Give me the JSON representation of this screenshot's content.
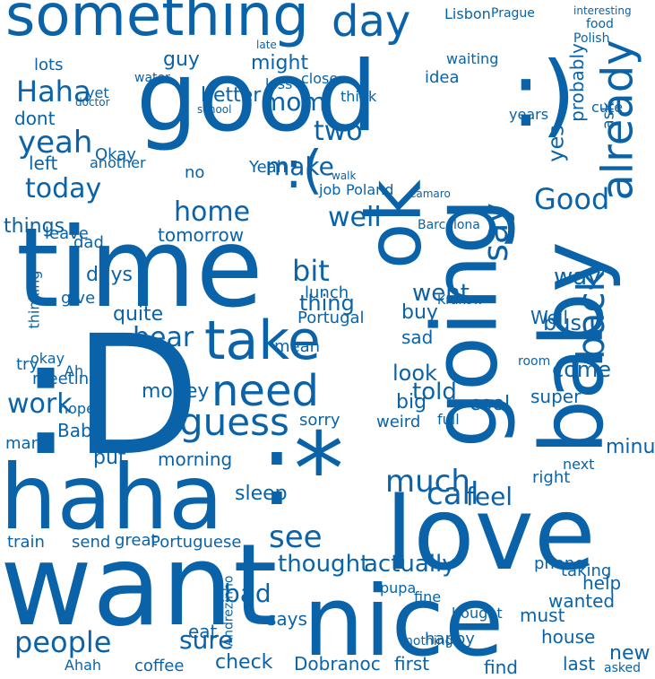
{
  "colors": {
    "word": "#0a63a8",
    "background": "#ffffff"
  },
  "words": [
    "something",
    "good",
    ":)",
    "time",
    ":D",
    "haha",
    "want",
    "nice",
    "love",
    ":*",
    "going",
    "baby",
    "ok",
    ":(",
    "day",
    "already",
    "yeah",
    "take",
    "need",
    "much",
    "back",
    "say",
    "guess",
    "Haha",
    "mom",
    "two",
    "today",
    "make",
    "home",
    "well",
    "Good",
    "yes",
    "bit",
    "see",
    "people",
    "Yeah",
    "work",
    "bear",
    "tomorrow",
    "quite",
    "went",
    "sure",
    "told",
    "first",
    "Dobranoc",
    "check",
    "eat",
    "morning",
    "sleep",
    "call",
    "feel",
    "things",
    "think",
    "better",
    "might",
    "guy",
    "probably",
    "ask",
    "thinking",
    "lunch",
    "thing",
    "days",
    "bus",
    "way",
    "train",
    "send",
    "great",
    "Portuguese",
    "phone",
    "buy",
    "new",
    "last",
    "thought",
    "actually",
    "wanted",
    "bad",
    "says",
    "find",
    "coffee",
    "Andrezinho",
    "come",
    "look",
    "big",
    "put",
    "no",
    "hope",
    "try",
    "money",
    "sorry",
    "right",
    "minutes",
    "next",
    "cool",
    "meeting",
    "Ah",
    "okay",
    "super",
    "sad",
    "Well",
    "Okay",
    "cute",
    "dad",
    "leave",
    "dont",
    "left",
    "another",
    "lots",
    "yet",
    "job",
    "Poland",
    "Lisbon",
    "Polish",
    "food",
    "Prague",
    "interesting",
    "walk",
    "pupa",
    "Krakow",
    "Barcelona",
    "Camaro",
    "water",
    "doctor",
    "school",
    "late",
    "Portugal",
    "mean",
    "idea",
    "waiting",
    "years",
    "close",
    "kiss",
    "room",
    "give",
    "many",
    "Baby",
    "weird",
    "taking",
    "full",
    "must",
    "house",
    "help",
    "happy",
    "bought",
    "fine",
    "nothing",
    "asked",
    "Ahah"
  ]
}
